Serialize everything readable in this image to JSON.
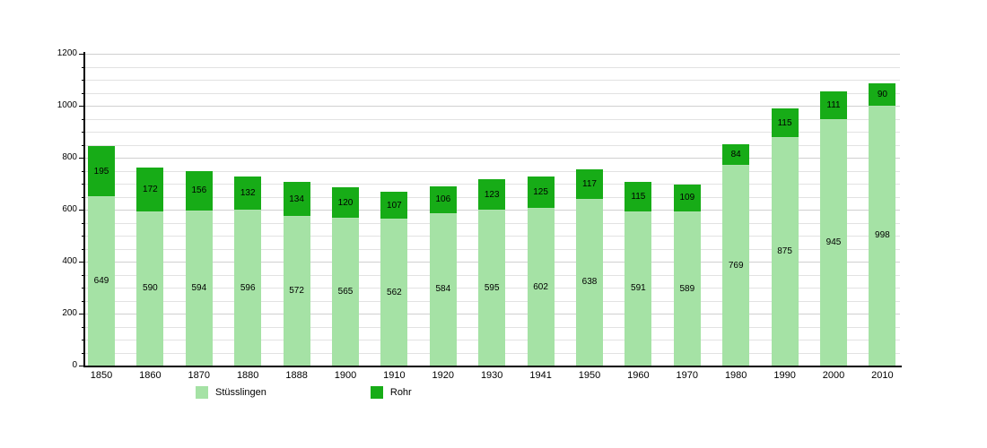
{
  "chart_data": {
    "type": "bar",
    "stacked": true,
    "title": "",
    "xlabel": "",
    "ylabel": "",
    "categories": [
      "1850",
      "1860",
      "1870",
      "1880",
      "1888",
      "1900",
      "1910",
      "1920",
      "1930",
      "1941",
      "1950",
      "1960",
      "1970",
      "1980",
      "1990",
      "2000",
      "2010"
    ],
    "series": [
      {
        "name": "Stüsslingen",
        "color": "#a5e2a5",
        "values": [
          649,
          590,
          594,
          596,
          572,
          565,
          562,
          584,
          595,
          602,
          638,
          591,
          589,
          769,
          875,
          945,
          998
        ]
      },
      {
        "name": "Rohr",
        "color": "#17ac17",
        "values": [
          195,
          172,
          156,
          132,
          134,
          120,
          107,
          106,
          123,
          125,
          117,
          115,
          109,
          84,
          115,
          111,
          90
        ]
      }
    ],
    "ylim": [
      0,
      1200
    ],
    "ytick_major_step": 200,
    "ytick_minor_step": 50,
    "ytick_labels": [
      "0",
      "200",
      "400",
      "600",
      "800",
      "1000",
      "1200"
    ],
    "grid": true,
    "legend_position": "bottom",
    "bar_label_color": "#000000",
    "axis_color": "#000000"
  }
}
